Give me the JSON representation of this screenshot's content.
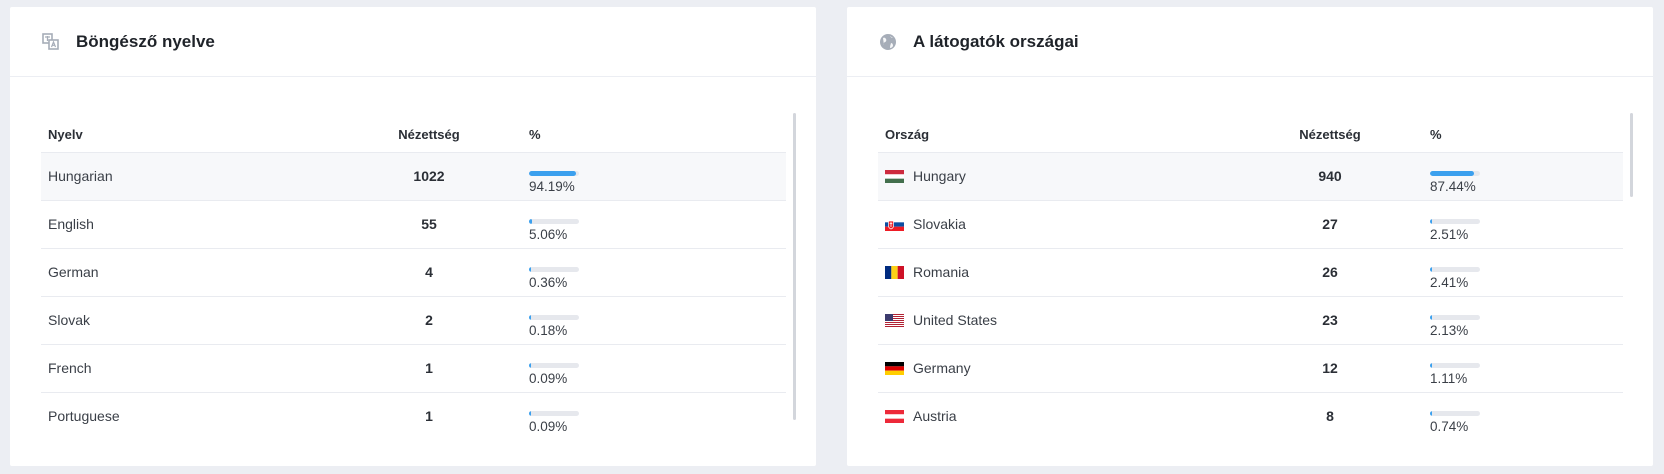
{
  "language_card": {
    "title": "Böngésző nyelve",
    "icon": "translate-icon",
    "columns": {
      "name": "Nyelv",
      "views": "Nézettség",
      "pct": "%"
    },
    "rows": [
      {
        "name": "Hungarian",
        "views": "1022",
        "pct": "94.19%",
        "fraction": 0.9419
      },
      {
        "name": "English",
        "views": "55",
        "pct": "5.06%",
        "fraction": 0.0506
      },
      {
        "name": "German",
        "views": "4",
        "pct": "0.36%",
        "fraction": 0.0036
      },
      {
        "name": "Slovak",
        "views": "2",
        "pct": "0.18%",
        "fraction": 0.0018
      },
      {
        "name": "French",
        "views": "1",
        "pct": "0.09%",
        "fraction": 0.0009
      },
      {
        "name": "Portuguese",
        "views": "1",
        "pct": "0.09%",
        "fraction": 0.0009
      }
    ]
  },
  "country_card": {
    "title": "A látogatók országai",
    "icon": "globe-icon",
    "columns": {
      "name": "Ország",
      "views": "Nézettség",
      "pct": "%"
    },
    "rows": [
      {
        "name": "Hungary",
        "views": "940",
        "pct": "87.44%",
        "fraction": 0.8744,
        "flag": "hungary-flag"
      },
      {
        "name": "Slovakia",
        "views": "27",
        "pct": "2.51%",
        "fraction": 0.0251,
        "flag": "slovakia-flag"
      },
      {
        "name": "Romania",
        "views": "26",
        "pct": "2.41%",
        "fraction": 0.0241,
        "flag": "romania-flag"
      },
      {
        "name": "United States",
        "views": "23",
        "pct": "2.13%",
        "fraction": 0.0213,
        "flag": "usa-flag"
      },
      {
        "name": "Germany",
        "views": "12",
        "pct": "1.11%",
        "fraction": 0.0111,
        "flag": "germany-flag"
      },
      {
        "name": "Austria",
        "views": "8",
        "pct": "0.74%",
        "fraction": 0.0074,
        "flag": "austria-flag"
      }
    ]
  },
  "colors": {
    "bar_fill": "#3ba0ee",
    "bar_track": "#e6e8ed",
    "icon": "#a6adb8"
  }
}
